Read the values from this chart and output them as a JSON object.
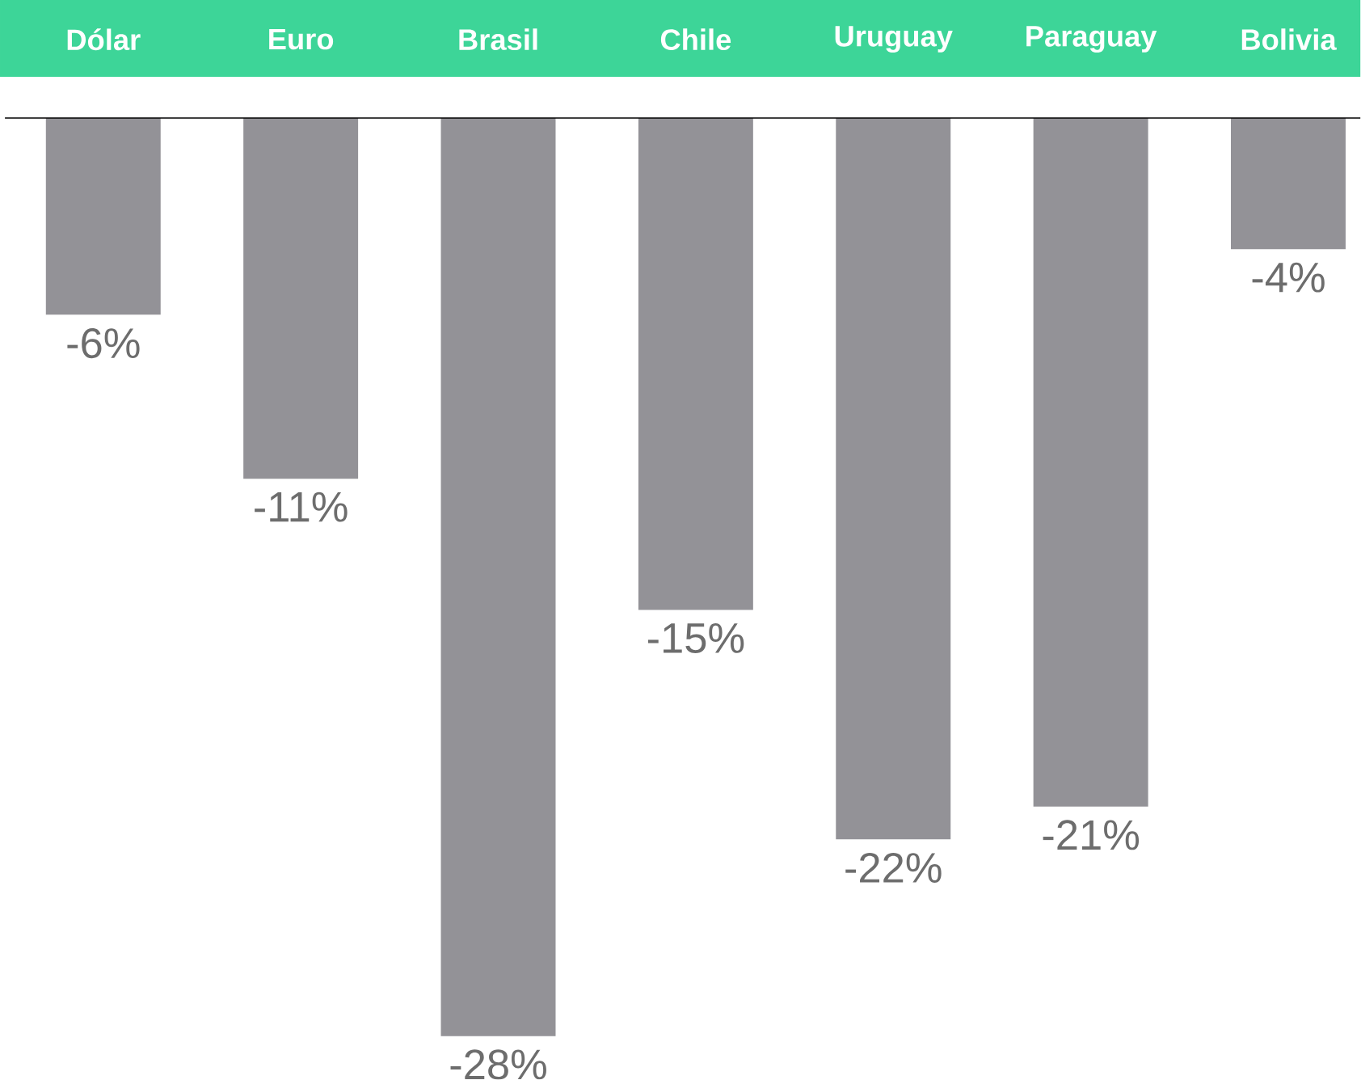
{
  "chart_data": {
    "type": "bar",
    "categories": [
      "Dólar",
      "Euro",
      "Brasil",
      "Chile",
      "Uruguay",
      "Paraguay",
      "Bolivia"
    ],
    "values": [
      -6,
      -11,
      -28,
      -15,
      -22,
      -21,
      -4
    ],
    "color": "#939297",
    "value_labels": [
      "-6%",
      "-11%",
      "-28%",
      "-15%",
      "-22%",
      "-21%",
      "-4%"
    ]
  }
}
